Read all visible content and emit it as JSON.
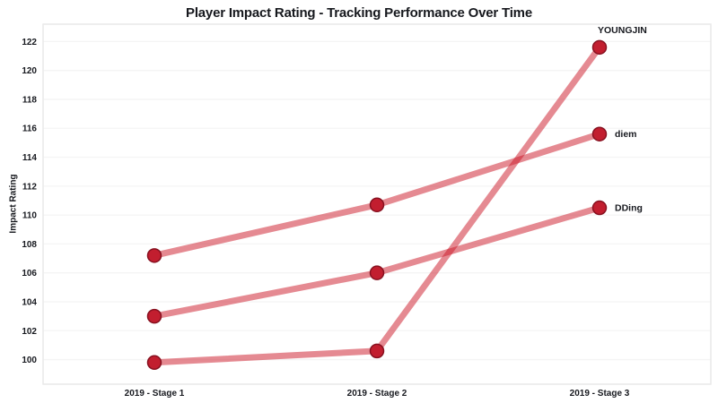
{
  "title": "Player Impact Rating - Tracking Performance Over Time",
  "colors": {
    "line": "rgba(204,21,37,0.5)",
    "marker_fill": "#c21e2f",
    "marker_stroke": "#871120",
    "grid": "#f4f4f4",
    "frame": "#e9e9e9",
    "text": "#17191f"
  },
  "chart_data": {
    "type": "line",
    "title": "Player Impact Rating - Tracking Performance Over Time",
    "xlabel": "",
    "ylabel": "Impact Rating",
    "categories": [
      "2019 - Stage 1",
      "2019 - Stage 2",
      "2019 - Stage 3"
    ],
    "series": [
      {
        "name": "YOUNGJIN",
        "values": [
          99.8,
          100.6,
          121.6
        ],
        "label_placement": "above"
      },
      {
        "name": "diem",
        "values": [
          107.2,
          110.7,
          115.6
        ],
        "label_placement": "right"
      },
      {
        "name": "DDing",
        "values": [
          103.0,
          106.0,
          110.5
        ],
        "label_placement": "right"
      }
    ],
    "ylim": [
      98.3,
      123.2
    ],
    "yticks": [
      100,
      102,
      104,
      106,
      108,
      110,
      112,
      114,
      116,
      118,
      120,
      122
    ],
    "grid": "horizontal",
    "legend": "end-of-line-labels"
  }
}
